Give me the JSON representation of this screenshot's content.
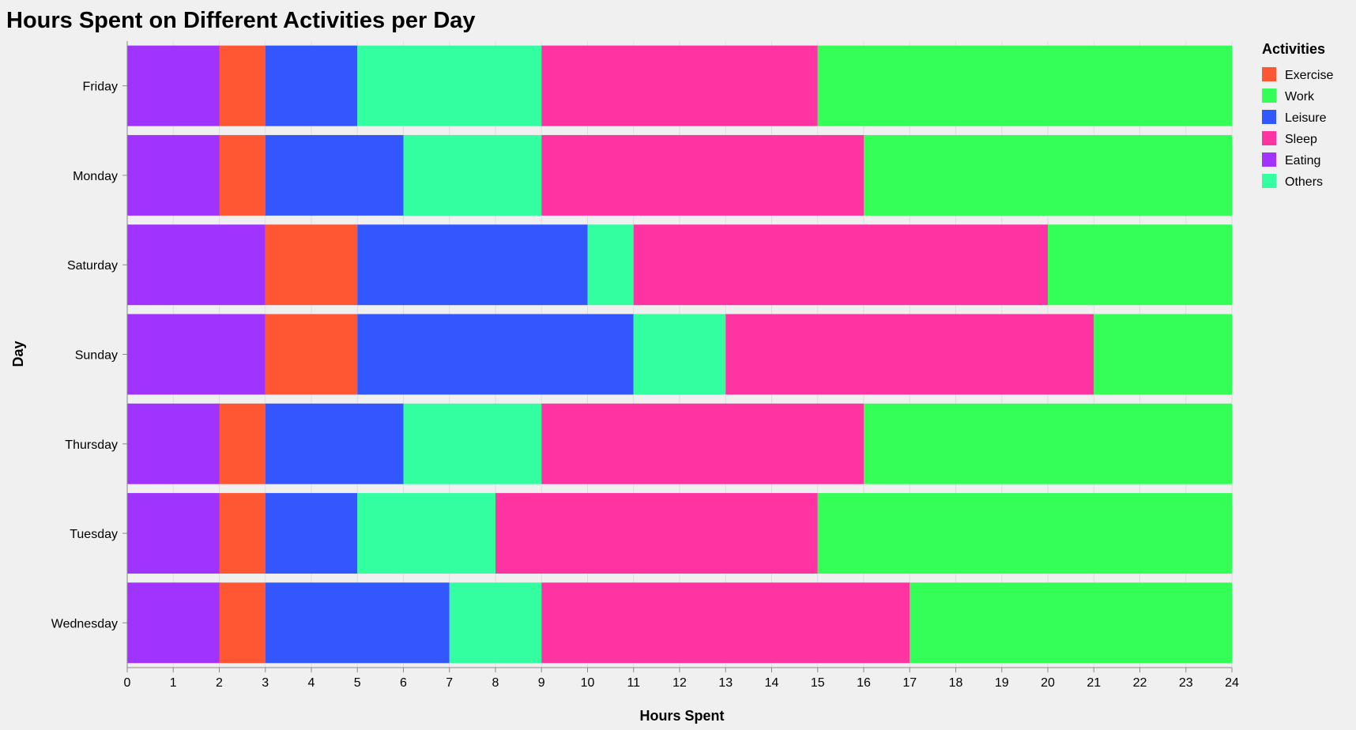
{
  "chart_data": {
    "type": "bar",
    "orientation": "horizontal",
    "stacked": true,
    "title": "Hours Spent on Different Activities per Day",
    "xlabel": "Hours Spent",
    "ylabel": "Day",
    "xlim": [
      0,
      24
    ],
    "x_ticks": [
      "0",
      "1",
      "2",
      "3",
      "4",
      "5",
      "6",
      "7",
      "8",
      "9",
      "10",
      "11",
      "12",
      "13",
      "14",
      "15",
      "16",
      "17",
      "18",
      "19",
      "20",
      "21",
      "22",
      "23",
      "24"
    ],
    "grid": true,
    "legend": {
      "title": "Activities",
      "position": "right"
    },
    "categories": [
      "Friday",
      "Monday",
      "Saturday",
      "Sunday",
      "Thursday",
      "Tuesday",
      "Wednesday"
    ],
    "stack_order": [
      "Eating",
      "Exercise",
      "Leisure",
      "Others",
      "Sleep",
      "Work"
    ],
    "legend_order": [
      "Exercise",
      "Work",
      "Leisure",
      "Sleep",
      "Eating",
      "Others"
    ],
    "series": [
      {
        "name": "Exercise",
        "color": "#ff5733",
        "values": [
          1,
          1,
          2,
          2,
          1,
          1,
          1
        ]
      },
      {
        "name": "Work",
        "color": "#33ff57",
        "values": [
          9,
          8,
          4,
          3,
          8,
          9,
          7
        ]
      },
      {
        "name": "Leisure",
        "color": "#3357ff",
        "values": [
          2,
          3,
          5,
          6,
          3,
          2,
          4
        ]
      },
      {
        "name": "Sleep",
        "color": "#ff33a1",
        "values": [
          6,
          7,
          9,
          8,
          7,
          7,
          8
        ]
      },
      {
        "name": "Eating",
        "color": "#a133ff",
        "values": [
          2,
          2,
          3,
          3,
          2,
          2,
          2
        ]
      },
      {
        "name": "Others",
        "color": "#33ffa1",
        "values": [
          4,
          3,
          1,
          2,
          3,
          3,
          2
        ]
      }
    ]
  }
}
